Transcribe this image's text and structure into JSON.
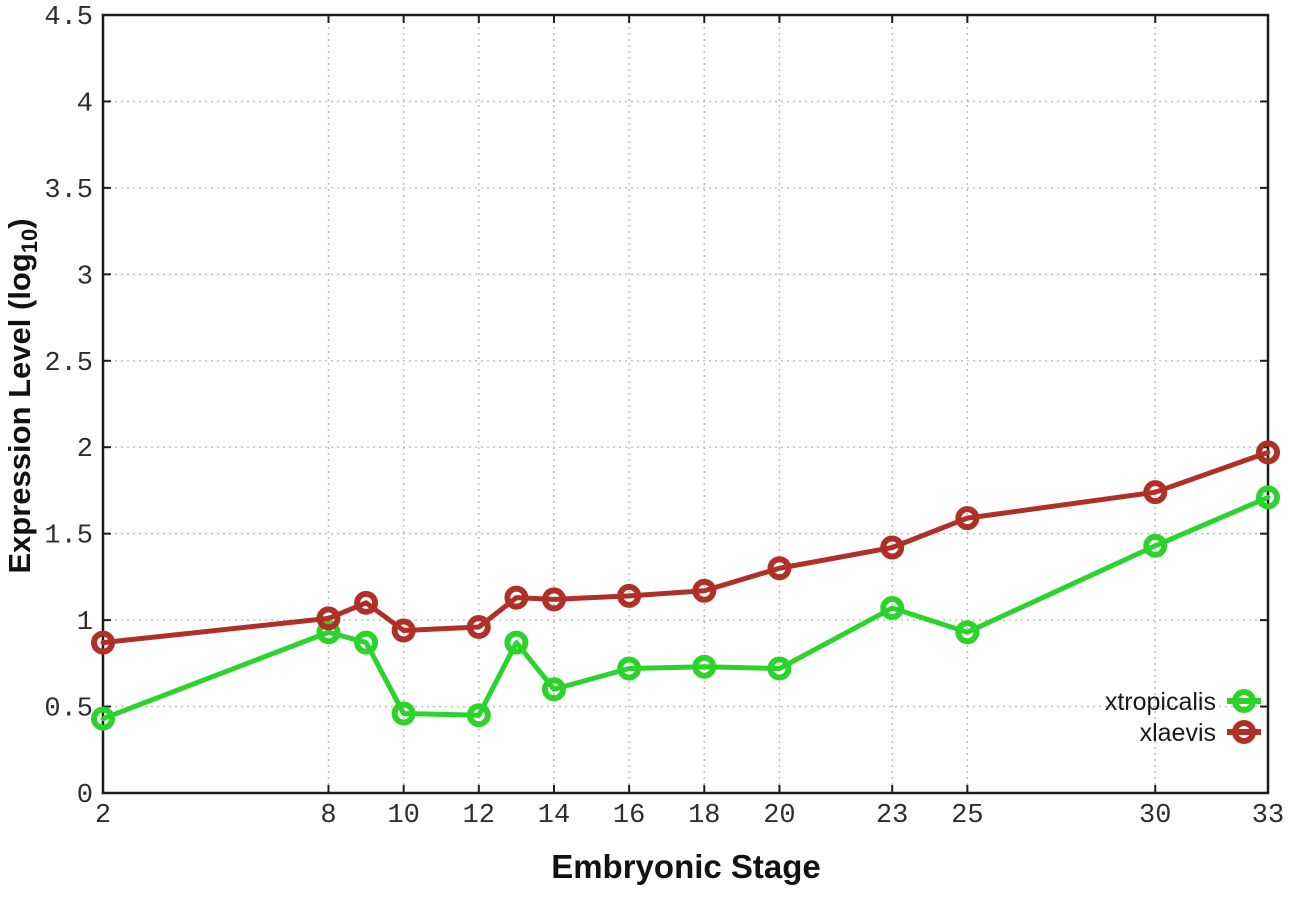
{
  "chart_data": {
    "type": "line",
    "title": "",
    "xlabel": "Embryonic Stage",
    "ylabel": "Expression Level (log10)",
    "ylabel_parts": {
      "main": "Expression Level (log",
      "sub": "10",
      "tail": ")"
    },
    "x": [
      2,
      8,
      9,
      10,
      12,
      13,
      14,
      16,
      18,
      20,
      23,
      25,
      30,
      33
    ],
    "xticks": [
      2,
      8,
      10,
      12,
      14,
      16,
      18,
      20,
      23,
      25,
      30,
      33
    ],
    "xtick_labels": [
      "2",
      "8",
      "10",
      "12",
      "14",
      "16",
      "18",
      "20",
      "23",
      "25",
      "30",
      "33"
    ],
    "yticks": [
      0,
      0.5,
      1,
      1.5,
      2,
      2.5,
      3,
      3.5,
      4,
      4.5
    ],
    "ytick_labels": [
      "0",
      "0.5",
      "1",
      "1.5",
      "2",
      "2.5",
      "3",
      "3.5",
      "4",
      "4.5"
    ],
    "xlim": [
      2,
      33
    ],
    "ylim": [
      0,
      4.5
    ],
    "grid": "dotted",
    "legend_position": "inside-bottom-right",
    "series": [
      {
        "name": "xtropicalis",
        "color": "#2bd32b",
        "marker": "open-circle",
        "values": [
          0.43,
          0.93,
          0.87,
          0.46,
          0.45,
          0.87,
          0.6,
          0.72,
          0.73,
          0.72,
          1.07,
          0.93,
          1.43,
          1.71
        ]
      },
      {
        "name": "xlaevis",
        "color": "#b03028",
        "marker": "open-circle",
        "values": [
          0.87,
          1.01,
          1.1,
          0.94,
          0.96,
          1.13,
          1.12,
          1.14,
          1.17,
          1.3,
          1.42,
          1.59,
          1.74,
          1.97
        ]
      }
    ]
  },
  "colors": {
    "background": "#ffffff",
    "plot_border": "#1c1c1c",
    "gridline": "#bbbbbb",
    "tick_mark": "#1c1c1c",
    "tick_label": "#2e2e2e",
    "axis_title": "#111111",
    "legend_text": "#1a1a1a"
  }
}
